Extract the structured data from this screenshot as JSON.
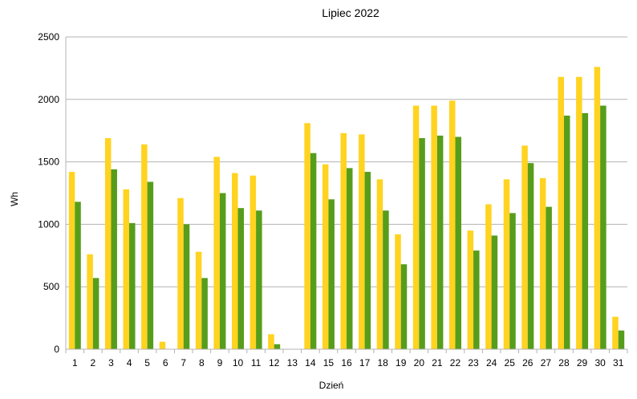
{
  "chart_data": {
    "type": "bar",
    "title": "Lipiec 2022",
    "xlabel": "Dzień",
    "ylabel": "Wh",
    "ylim": [
      0,
      2500
    ],
    "yticks": [
      0,
      500,
      1000,
      1500,
      2000,
      2500
    ],
    "grid": true,
    "legend": "none",
    "categories": [
      "1",
      "2",
      "3",
      "4",
      "5",
      "6",
      "7",
      "8",
      "9",
      "10",
      "11",
      "12",
      "13",
      "14",
      "15",
      "16",
      "17",
      "18",
      "19",
      "20",
      "21",
      "22",
      "23",
      "24",
      "25",
      "26",
      "27",
      "28",
      "29",
      "30",
      "31"
    ],
    "series": [
      {
        "color": "#ffd320",
        "values": [
          1420,
          760,
          1690,
          1280,
          1640,
          60,
          1210,
          780,
          1540,
          1410,
          1390,
          120,
          0,
          1810,
          1480,
          1730,
          1720,
          1360,
          920,
          1950,
          1950,
          1990,
          950,
          1160,
          1360,
          1630,
          1370,
          2180,
          2180,
          2260,
          260
        ]
      },
      {
        "color": "#579d1c",
        "values": [
          1180,
          570,
          1440,
          1010,
          1340,
          0,
          1000,
          570,
          1250,
          1130,
          1110,
          40,
          0,
          1570,
          1200,
          1450,
          1420,
          1110,
          680,
          1690,
          1710,
          1700,
          790,
          910,
          1090,
          1490,
          1140,
          1870,
          1890,
          1950,
          150
        ]
      }
    ]
  }
}
